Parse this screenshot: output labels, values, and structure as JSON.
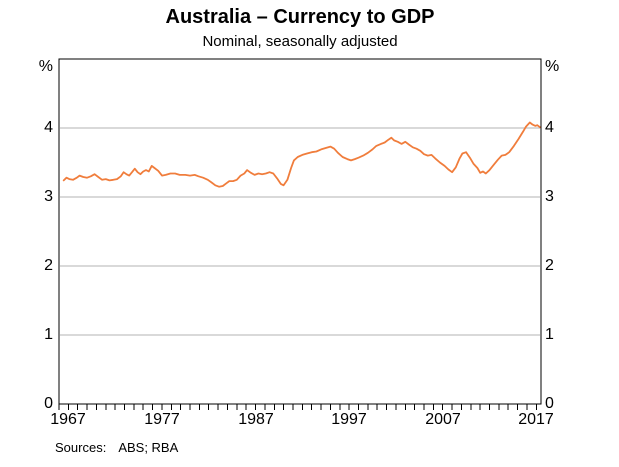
{
  "chart_data": {
    "type": "line",
    "title": "Australia – Currency to GDP",
    "subtitle": "Nominal, seasonally adjusted",
    "unit": "%",
    "xlabel": "",
    "ylabel": "%",
    "x_tick_labels": [
      "1967",
      "1977",
      "1987",
      "1997",
      "2007",
      "2017"
    ],
    "x_tick_years": [
      1967,
      1977,
      1987,
      1997,
      2007,
      2017
    ],
    "y_tick_labels": [
      "4",
      "3",
      "2",
      "1",
      "0"
    ],
    "y_tick_values": [
      4,
      3,
      2,
      1,
      0
    ],
    "x_range": [
      1966,
      2017.5
    ],
    "y_range": [
      0,
      5
    ],
    "gridlines_at": [
      1,
      2,
      3,
      4
    ],
    "x_minor_ticks_every": 1,
    "legend": "none",
    "colors": {
      "line": "#f07d3c",
      "grid": "#b3b3b3",
      "axis": "#000000",
      "text": "#000000"
    },
    "series": [
      {
        "name": "Currency to GDP",
        "points": [
          [
            1966.5,
            3.24
          ],
          [
            1966.8,
            3.28
          ],
          [
            1967.1,
            3.26
          ],
          [
            1967.5,
            3.25
          ],
          [
            1967.9,
            3.28
          ],
          [
            1968.2,
            3.31
          ],
          [
            1968.6,
            3.29
          ],
          [
            1969.0,
            3.28
          ],
          [
            1969.4,
            3.3
          ],
          [
            1969.8,
            3.33
          ],
          [
            1970.2,
            3.29
          ],
          [
            1970.6,
            3.25
          ],
          [
            1971.0,
            3.26
          ],
          [
            1971.4,
            3.24
          ],
          [
            1971.8,
            3.25
          ],
          [
            1972.2,
            3.26
          ],
          [
            1972.6,
            3.3
          ],
          [
            1972.9,
            3.36
          ],
          [
            1973.2,
            3.33
          ],
          [
            1973.5,
            3.31
          ],
          [
            1973.8,
            3.36
          ],
          [
            1974.1,
            3.41
          ],
          [
            1974.4,
            3.36
          ],
          [
            1974.7,
            3.33
          ],
          [
            1975.0,
            3.37
          ],
          [
            1975.3,
            3.39
          ],
          [
            1975.6,
            3.37
          ],
          [
            1975.9,
            3.45
          ],
          [
            1976.2,
            3.42
          ],
          [
            1976.6,
            3.38
          ],
          [
            1977.0,
            3.31
          ],
          [
            1977.4,
            3.32
          ],
          [
            1977.9,
            3.34
          ],
          [
            1978.4,
            3.34
          ],
          [
            1978.9,
            3.32
          ],
          [
            1979.5,
            3.32
          ],
          [
            1980.0,
            3.31
          ],
          [
            1980.5,
            3.32
          ],
          [
            1980.9,
            3.3
          ],
          [
            1981.4,
            3.28
          ],
          [
            1981.9,
            3.25
          ],
          [
            1982.3,
            3.21
          ],
          [
            1982.7,
            3.17
          ],
          [
            1983.1,
            3.15
          ],
          [
            1983.5,
            3.16
          ],
          [
            1983.9,
            3.2
          ],
          [
            1984.2,
            3.23
          ],
          [
            1984.6,
            3.23
          ],
          [
            1985.0,
            3.25
          ],
          [
            1985.4,
            3.31
          ],
          [
            1985.8,
            3.34
          ],
          [
            1986.1,
            3.39
          ],
          [
            1986.5,
            3.35
          ],
          [
            1986.9,
            3.32
          ],
          [
            1987.3,
            3.34
          ],
          [
            1987.7,
            3.33
          ],
          [
            1988.1,
            3.34
          ],
          [
            1988.5,
            3.36
          ],
          [
            1988.9,
            3.34
          ],
          [
            1989.3,
            3.27
          ],
          [
            1989.7,
            3.19
          ],
          [
            1990.0,
            3.17
          ],
          [
            1990.4,
            3.25
          ],
          [
            1990.8,
            3.42
          ],
          [
            1991.1,
            3.53
          ],
          [
            1991.5,
            3.58
          ],
          [
            1992.0,
            3.61
          ],
          [
            1992.5,
            3.63
          ],
          [
            1993.0,
            3.65
          ],
          [
            1993.5,
            3.66
          ],
          [
            1994.0,
            3.69
          ],
          [
            1994.5,
            3.71
          ],
          [
            1995.0,
            3.73
          ],
          [
            1995.4,
            3.7
          ],
          [
            1995.8,
            3.64
          ],
          [
            1996.3,
            3.58
          ],
          [
            1996.8,
            3.55
          ],
          [
            1997.2,
            3.53
          ],
          [
            1997.6,
            3.55
          ],
          [
            1998.0,
            3.57
          ],
          [
            1998.5,
            3.6
          ],
          [
            1999.0,
            3.64
          ],
          [
            1999.5,
            3.69
          ],
          [
            1999.9,
            3.74
          ],
          [
            2000.4,
            3.77
          ],
          [
            2000.8,
            3.79
          ],
          [
            2001.2,
            3.83
          ],
          [
            2001.5,
            3.86
          ],
          [
            2001.8,
            3.82
          ],
          [
            2002.2,
            3.8
          ],
          [
            2002.6,
            3.77
          ],
          [
            2003.0,
            3.8
          ],
          [
            2003.4,
            3.76
          ],
          [
            2003.8,
            3.72
          ],
          [
            2004.2,
            3.7
          ],
          [
            2004.6,
            3.67
          ],
          [
            2005.0,
            3.62
          ],
          [
            2005.4,
            3.6
          ],
          [
            2005.8,
            3.61
          ],
          [
            2006.2,
            3.56
          ],
          [
            2006.7,
            3.5
          ],
          [
            2007.2,
            3.45
          ],
          [
            2007.6,
            3.4
          ],
          [
            2008.0,
            3.36
          ],
          [
            2008.4,
            3.43
          ],
          [
            2008.8,
            3.56
          ],
          [
            2009.1,
            3.63
          ],
          [
            2009.5,
            3.65
          ],
          [
            2009.9,
            3.57
          ],
          [
            2010.3,
            3.48
          ],
          [
            2010.7,
            3.42
          ],
          [
            2011.0,
            3.35
          ],
          [
            2011.3,
            3.37
          ],
          [
            2011.6,
            3.34
          ],
          [
            2012.0,
            3.39
          ],
          [
            2012.4,
            3.46
          ],
          [
            2012.9,
            3.54
          ],
          [
            2013.3,
            3.6
          ],
          [
            2013.7,
            3.61
          ],
          [
            2014.1,
            3.65
          ],
          [
            2014.6,
            3.74
          ],
          [
            2015.1,
            3.84
          ],
          [
            2015.6,
            3.95
          ],
          [
            2015.9,
            4.02
          ],
          [
            2016.3,
            4.08
          ],
          [
            2016.6,
            4.05
          ],
          [
            2016.9,
            4.03
          ],
          [
            2017.1,
            4.04
          ],
          [
            2017.4,
            4.01
          ]
        ]
      }
    ]
  },
  "footer": {
    "sources_label": "Sources:",
    "sources_value": "ABS; RBA"
  }
}
